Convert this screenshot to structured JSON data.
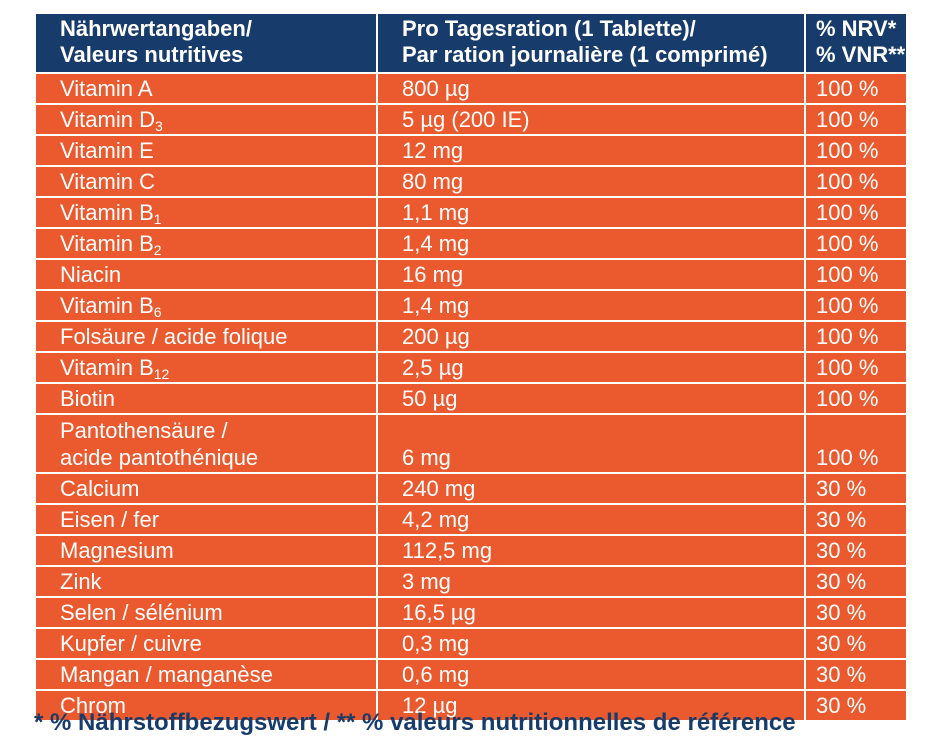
{
  "header": {
    "col1": [
      "Nährwertangaben/",
      "Valeurs nutritives"
    ],
    "col2": [
      "Pro Tagesration (1 Tablette)/",
      "Par ration journalière (1 comprimé)"
    ],
    "col3": [
      "% NRV*",
      "% VNR**"
    ]
  },
  "rows": [
    {
      "name": "Vitamin A",
      "sub": "",
      "amount": "800 µg",
      "nrv": "100 %"
    },
    {
      "name": "Vitamin D",
      "sub": "3",
      "amount": "5 µg (200 IE)",
      "nrv": "100 %"
    },
    {
      "name": "Vitamin E",
      "sub": "",
      "amount": "12 mg",
      "nrv": "100 %"
    },
    {
      "name": "Vitamin C",
      "sub": "",
      "amount": "80 mg",
      "nrv": "100 %"
    },
    {
      "name": "Vitamin B",
      "sub": "1",
      "amount": "1,1 mg",
      "nrv": "100 %"
    },
    {
      "name": "Vitamin B",
      "sub": "2",
      "amount": "1,4 mg",
      "nrv": "100 %"
    },
    {
      "name": "Niacin",
      "sub": "",
      "amount": "16 mg",
      "nrv": "100 %"
    },
    {
      "name": "Vitamin B",
      "sub": "6",
      "amount": "1,4 mg",
      "nrv": "100 %"
    },
    {
      "name": "Folsäure / acide folique",
      "sub": "",
      "amount": "200 µg",
      "nrv": "100 %"
    },
    {
      "name": "Vitamin B",
      "sub": "12",
      "amount": "2,5 µg",
      "nrv": "100 %"
    },
    {
      "name": "Biotin",
      "sub": "",
      "amount": "50 µg",
      "nrv": "100 %"
    },
    {
      "name": "Pantothensäure /",
      "name2": "acide pantothénique",
      "sub": "",
      "amount": "6 mg",
      "nrv": "100 %"
    },
    {
      "name": "Calcium",
      "sub": "",
      "amount": "240 mg",
      "nrv": "30 %"
    },
    {
      "name": "Eisen / fer",
      "sub": "",
      "amount": "4,2 mg",
      "nrv": "30 %"
    },
    {
      "name": "Magnesium",
      "sub": "",
      "amount": "112,5 mg",
      "nrv": "30 %"
    },
    {
      "name": "Zink",
      "sub": "",
      "amount": "3 mg",
      "nrv": "30 %"
    },
    {
      "name": "Selen / sélénium",
      "sub": "",
      "amount": "16,5 µg",
      "nrv": "30 %"
    },
    {
      "name": "Kupfer / cuivre",
      "sub": "",
      "amount": "0,3 mg",
      "nrv": "30 %"
    },
    {
      "name": "Mangan / manganèse",
      "sub": "",
      "amount": "0,6 mg",
      "nrv": "30 %"
    },
    {
      "name": "Chrom",
      "sub": "",
      "amount": "12 µg",
      "nrv": "30 %"
    }
  ],
  "footnote": "* % Nährstoffbezugswert / ** % valeurs nutritionnelles de référence",
  "colors": {
    "header_bg": "#173c6c",
    "row_bg": "#ea5a2e",
    "text": "#ffffff",
    "footnote": "#173c6c"
  }
}
